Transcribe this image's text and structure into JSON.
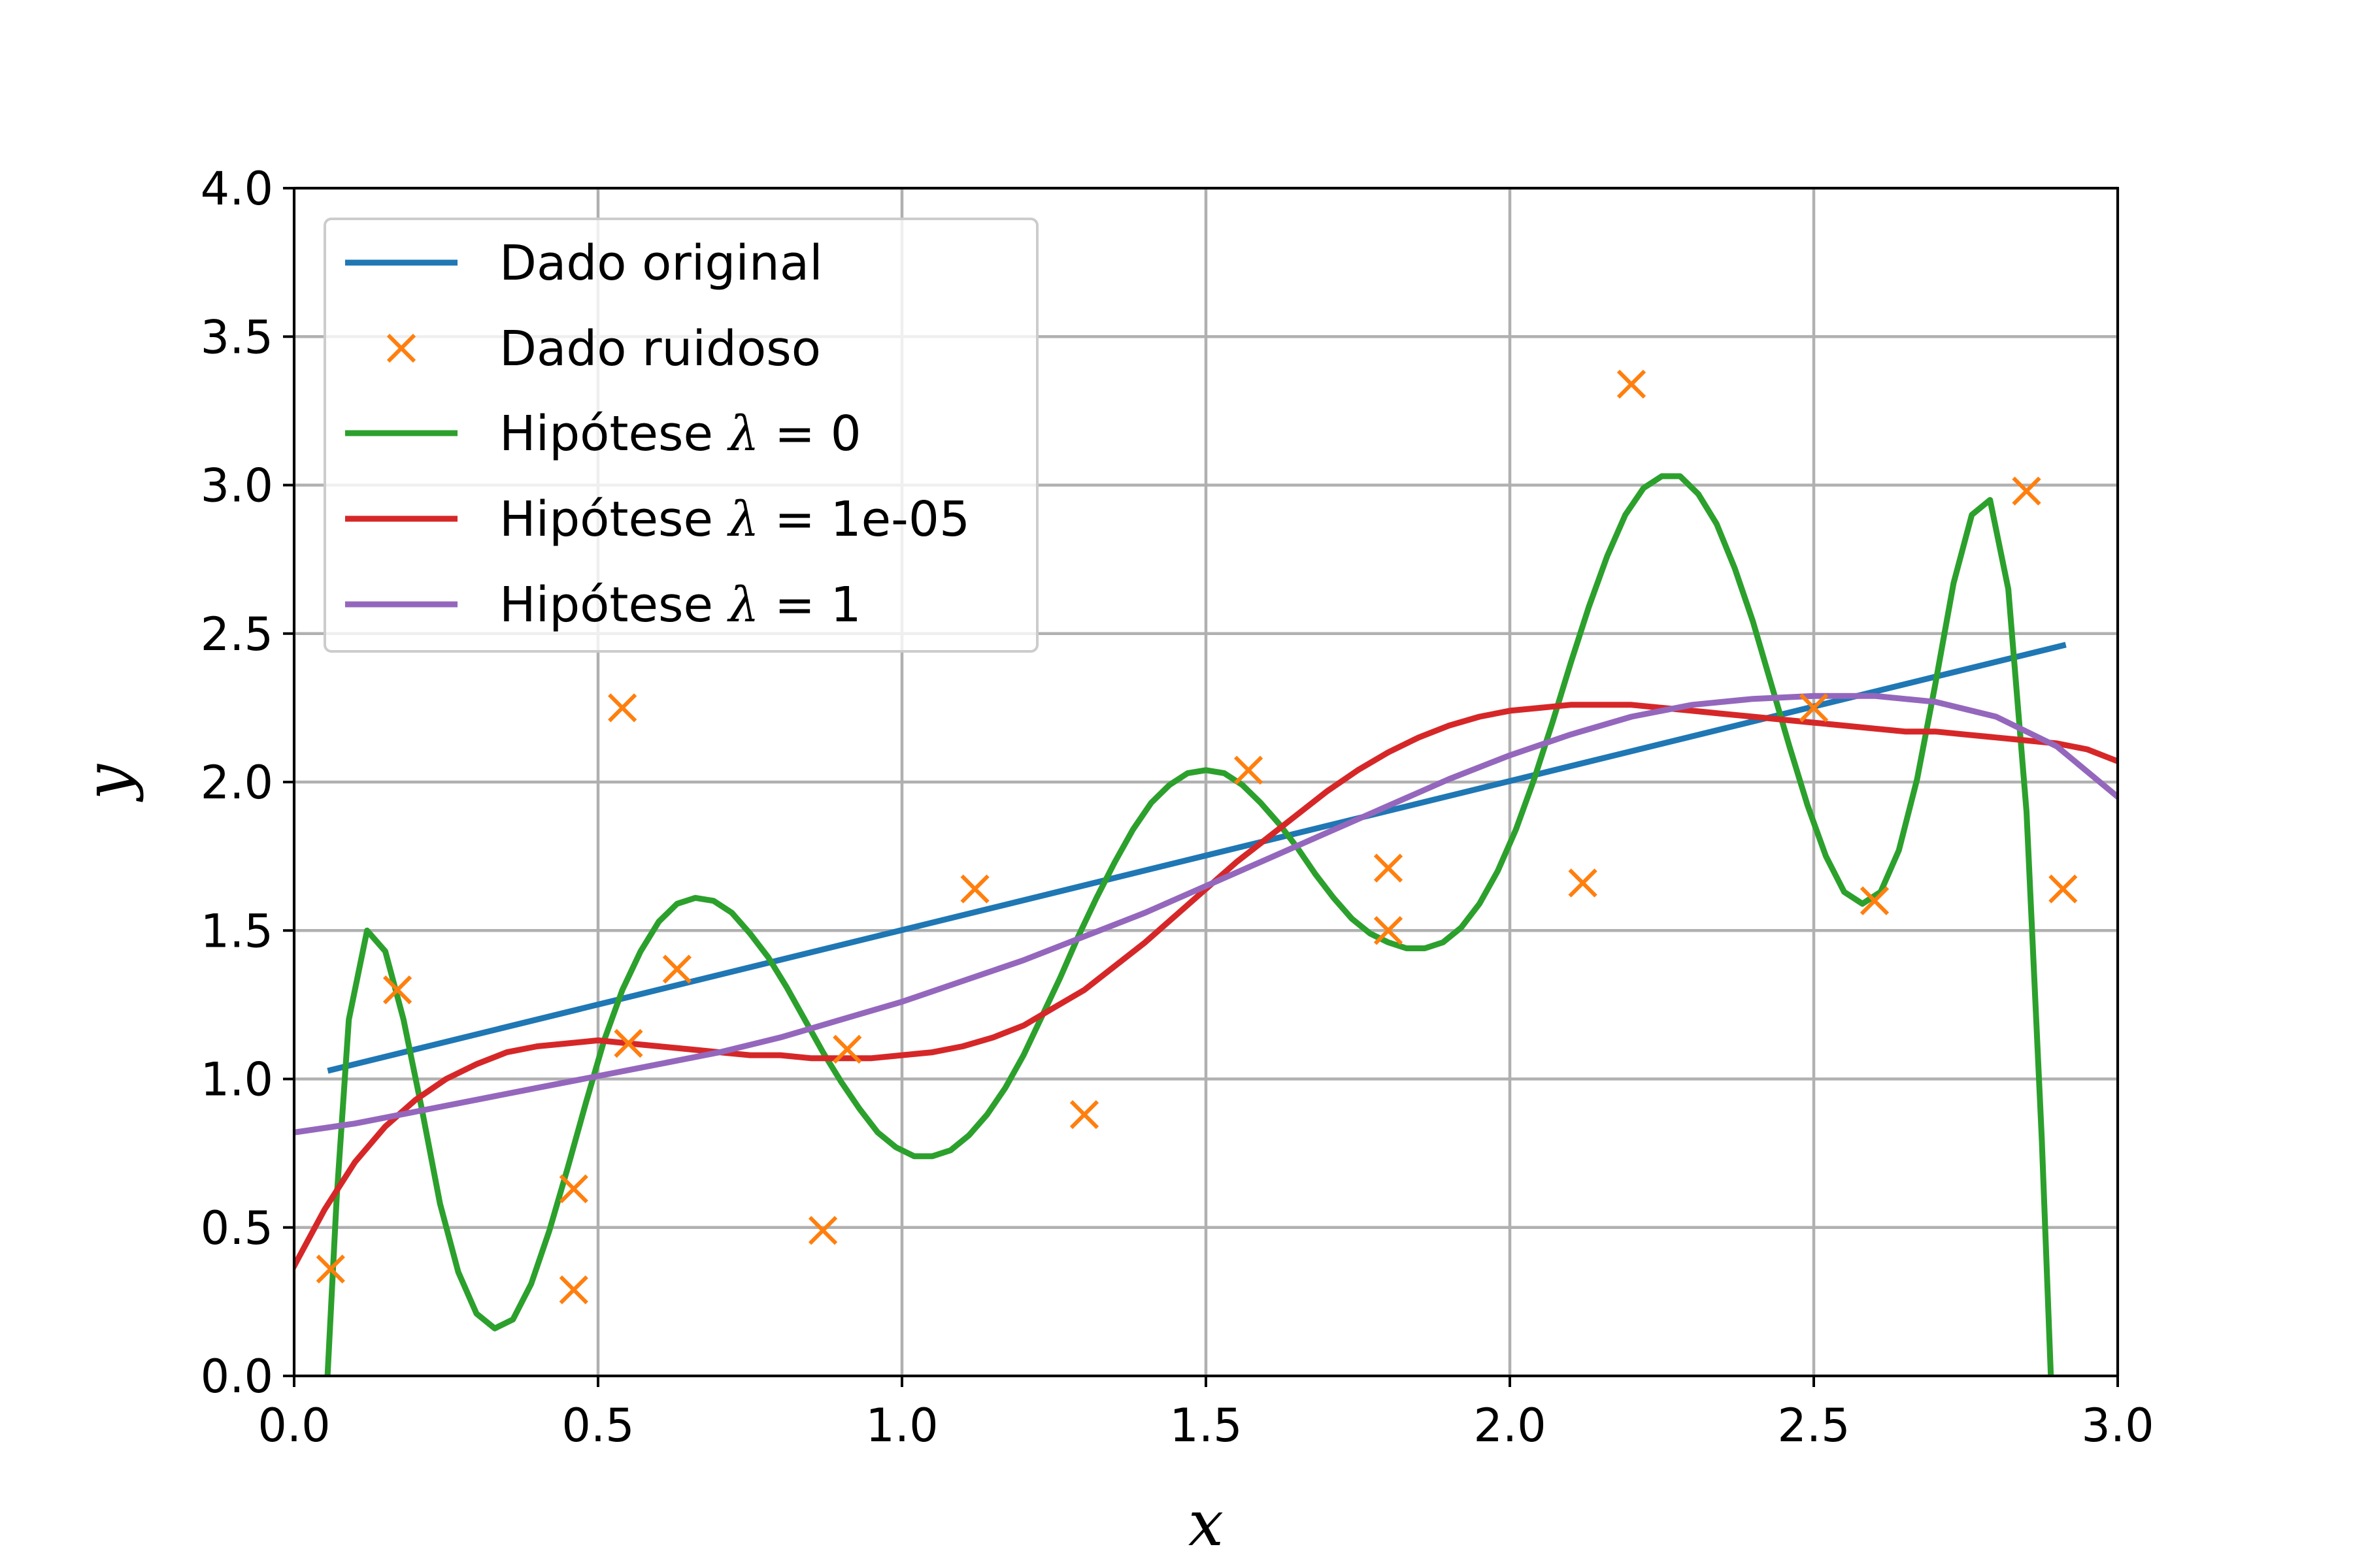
{
  "chart_data": {
    "type": "line",
    "title": "",
    "xlabel": "x",
    "ylabel": "y",
    "xlim": [
      0.0,
      3.0
    ],
    "ylim": [
      0.0,
      4.0
    ],
    "xticks": [
      "0.0",
      "0.5",
      "1.0",
      "1.5",
      "2.0",
      "2.5",
      "3.0"
    ],
    "yticks": [
      "0.0",
      "0.5",
      "1.0",
      "1.5",
      "2.0",
      "2.5",
      "3.0",
      "3.5",
      "4.0"
    ],
    "grid": true,
    "legend_position": "top-left",
    "series": [
      {
        "name": "Dado original",
        "kind": "line",
        "color": "#1f77b4",
        "points": [
          [
            0.06,
            1.03
          ],
          [
            2.91,
            2.46
          ]
        ]
      },
      {
        "name": "Dado ruidoso",
        "kind": "scatter",
        "marker": "x",
        "color": "#ff7f0e",
        "points": [
          [
            0.06,
            0.36
          ],
          [
            0.17,
            1.3
          ],
          [
            0.46,
            0.63
          ],
          [
            0.46,
            0.29
          ],
          [
            0.54,
            2.25
          ],
          [
            0.55,
            1.12
          ],
          [
            0.63,
            1.37
          ],
          [
            0.87,
            0.49
          ],
          [
            0.91,
            1.1
          ],
          [
            1.12,
            1.64
          ],
          [
            1.3,
            0.88
          ],
          [
            1.57,
            2.04
          ],
          [
            1.8,
            1.5
          ],
          [
            1.8,
            1.71
          ],
          [
            2.12,
            1.66
          ],
          [
            2.2,
            3.34
          ],
          [
            2.5,
            2.25
          ],
          [
            2.6,
            1.6
          ],
          [
            2.85,
            2.98
          ],
          [
            2.91,
            1.64
          ]
        ]
      },
      {
        "name": "Hipótese λ = 0",
        "legend_prefix": "Hipótese ",
        "legend_symbol": "λ",
        "legend_suffix": " = 0",
        "kind": "line",
        "color": "#2ca02c",
        "points": [
          [
            0.055,
            0.0
          ],
          [
            0.07,
            0.6
          ],
          [
            0.09,
            1.2
          ],
          [
            0.12,
            1.5
          ],
          [
            0.15,
            1.43
          ],
          [
            0.18,
            1.2
          ],
          [
            0.21,
            0.9
          ],
          [
            0.24,
            0.58
          ],
          [
            0.27,
            0.35
          ],
          [
            0.3,
            0.21
          ],
          [
            0.33,
            0.16
          ],
          [
            0.36,
            0.19
          ],
          [
            0.39,
            0.31
          ],
          [
            0.42,
            0.49
          ],
          [
            0.45,
            0.7
          ],
          [
            0.48,
            0.92
          ],
          [
            0.51,
            1.13
          ],
          [
            0.54,
            1.3
          ],
          [
            0.57,
            1.43
          ],
          [
            0.6,
            1.53
          ],
          [
            0.63,
            1.59
          ],
          [
            0.66,
            1.61
          ],
          [
            0.69,
            1.6
          ],
          [
            0.72,
            1.56
          ],
          [
            0.75,
            1.49
          ],
          [
            0.78,
            1.41
          ],
          [
            0.81,
            1.31
          ],
          [
            0.84,
            1.2
          ],
          [
            0.87,
            1.09
          ],
          [
            0.9,
            0.99
          ],
          [
            0.93,
            0.9
          ],
          [
            0.96,
            0.82
          ],
          [
            0.99,
            0.77
          ],
          [
            1.02,
            0.74
          ],
          [
            1.05,
            0.74
          ],
          [
            1.08,
            0.76
          ],
          [
            1.11,
            0.81
          ],
          [
            1.14,
            0.88
          ],
          [
            1.17,
            0.97
          ],
          [
            1.2,
            1.08
          ],
          [
            1.23,
            1.21
          ],
          [
            1.26,
            1.34
          ],
          [
            1.29,
            1.48
          ],
          [
            1.32,
            1.61
          ],
          [
            1.35,
            1.73
          ],
          [
            1.38,
            1.84
          ],
          [
            1.41,
            1.93
          ],
          [
            1.44,
            1.99
          ],
          [
            1.47,
            2.03
          ],
          [
            1.5,
            2.04
          ],
          [
            1.53,
            2.03
          ],
          [
            1.56,
            1.99
          ],
          [
            1.59,
            1.93
          ],
          [
            1.62,
            1.86
          ],
          [
            1.65,
            1.78
          ],
          [
            1.68,
            1.69
          ],
          [
            1.71,
            1.61
          ],
          [
            1.74,
            1.54
          ],
          [
            1.77,
            1.49
          ],
          [
            1.8,
            1.46
          ],
          [
            1.83,
            1.44
          ],
          [
            1.86,
            1.44
          ],
          [
            1.89,
            1.46
          ],
          [
            1.92,
            1.51
          ],
          [
            1.95,
            1.59
          ],
          [
            1.98,
            1.7
          ],
          [
            2.01,
            1.84
          ],
          [
            2.04,
            2.01
          ],
          [
            2.07,
            2.2
          ],
          [
            2.1,
            2.4
          ],
          [
            2.13,
            2.59
          ],
          [
            2.16,
            2.76
          ],
          [
            2.19,
            2.9
          ],
          [
            2.22,
            2.99
          ],
          [
            2.25,
            3.03
          ],
          [
            2.28,
            3.03
          ],
          [
            2.31,
            2.97
          ],
          [
            2.34,
            2.87
          ],
          [
            2.37,
            2.72
          ],
          [
            2.4,
            2.54
          ],
          [
            2.43,
            2.33
          ],
          [
            2.46,
            2.12
          ],
          [
            2.49,
            1.92
          ],
          [
            2.52,
            1.75
          ],
          [
            2.55,
            1.63
          ],
          [
            2.58,
            1.59
          ],
          [
            2.61,
            1.63
          ],
          [
            2.64,
            1.77
          ],
          [
            2.67,
            2.01
          ],
          [
            2.7,
            2.33
          ],
          [
            2.73,
            2.67
          ],
          [
            2.76,
            2.9
          ],
          [
            2.79,
            2.95
          ],
          [
            2.82,
            2.65
          ],
          [
            2.85,
            1.9
          ],
          [
            2.875,
            0.8
          ],
          [
            2.89,
            0.0
          ]
        ]
      },
      {
        "name": "Hipótese λ = 1e-05",
        "legend_prefix": "Hipótese ",
        "legend_symbol": "λ",
        "legend_suffix": " = 1e-05",
        "kind": "line",
        "color": "#d62728",
        "points": [
          [
            0.0,
            0.37
          ],
          [
            0.05,
            0.56
          ],
          [
            0.1,
            0.72
          ],
          [
            0.15,
            0.84
          ],
          [
            0.2,
            0.93
          ],
          [
            0.25,
            1.0
          ],
          [
            0.3,
            1.05
          ],
          [
            0.35,
            1.09
          ],
          [
            0.4,
            1.11
          ],
          [
            0.45,
            1.12
          ],
          [
            0.5,
            1.13
          ],
          [
            0.55,
            1.12
          ],
          [
            0.6,
            1.11
          ],
          [
            0.65,
            1.1
          ],
          [
            0.7,
            1.09
          ],
          [
            0.75,
            1.08
          ],
          [
            0.8,
            1.08
          ],
          [
            0.85,
            1.07
          ],
          [
            0.9,
            1.07
          ],
          [
            0.95,
            1.07
          ],
          [
            1.0,
            1.08
          ],
          [
            1.05,
            1.09
          ],
          [
            1.1,
            1.11
          ],
          [
            1.15,
            1.14
          ],
          [
            1.2,
            1.18
          ],
          [
            1.25,
            1.24
          ],
          [
            1.3,
            1.3
          ],
          [
            1.35,
            1.38
          ],
          [
            1.4,
            1.46
          ],
          [
            1.45,
            1.55
          ],
          [
            1.5,
            1.64
          ],
          [
            1.55,
            1.73
          ],
          [
            1.6,
            1.81
          ],
          [
            1.65,
            1.89
          ],
          [
            1.7,
            1.97
          ],
          [
            1.75,
            2.04
          ],
          [
            1.8,
            2.1
          ],
          [
            1.85,
            2.15
          ],
          [
            1.9,
            2.19
          ],
          [
            1.95,
            2.22
          ],
          [
            2.0,
            2.24
          ],
          [
            2.05,
            2.25
          ],
          [
            2.1,
            2.26
          ],
          [
            2.15,
            2.26
          ],
          [
            2.2,
            2.26
          ],
          [
            2.25,
            2.25
          ],
          [
            2.3,
            2.24
          ],
          [
            2.35,
            2.23
          ],
          [
            2.4,
            2.22
          ],
          [
            2.45,
            2.21
          ],
          [
            2.5,
            2.2
          ],
          [
            2.55,
            2.19
          ],
          [
            2.6,
            2.18
          ],
          [
            2.65,
            2.17
          ],
          [
            2.7,
            2.17
          ],
          [
            2.75,
            2.16
          ],
          [
            2.8,
            2.15
          ],
          [
            2.85,
            2.14
          ],
          [
            2.9,
            2.13
          ],
          [
            2.95,
            2.11
          ],
          [
            3.0,
            2.07
          ]
        ]
      },
      {
        "name": "Hipótese λ = 1",
        "legend_prefix": "Hipótese ",
        "legend_symbol": "λ",
        "legend_suffix": " = 1",
        "kind": "line",
        "color": "#9467bd",
        "points": [
          [
            0.0,
            0.82
          ],
          [
            0.1,
            0.85
          ],
          [
            0.2,
            0.89
          ],
          [
            0.3,
            0.93
          ],
          [
            0.4,
            0.97
          ],
          [
            0.5,
            1.01
          ],
          [
            0.6,
            1.05
          ],
          [
            0.7,
            1.09
          ],
          [
            0.8,
            1.14
          ],
          [
            0.9,
            1.2
          ],
          [
            1.0,
            1.26
          ],
          [
            1.1,
            1.33
          ],
          [
            1.2,
            1.4
          ],
          [
            1.3,
            1.48
          ],
          [
            1.4,
            1.56
          ],
          [
            1.5,
            1.65
          ],
          [
            1.6,
            1.74
          ],
          [
            1.7,
            1.83
          ],
          [
            1.8,
            1.92
          ],
          [
            1.9,
            2.01
          ],
          [
            2.0,
            2.09
          ],
          [
            2.1,
            2.16
          ],
          [
            2.2,
            2.22
          ],
          [
            2.3,
            2.26
          ],
          [
            2.4,
            2.28
          ],
          [
            2.5,
            2.29
          ],
          [
            2.6,
            2.29
          ],
          [
            2.7,
            2.27
          ],
          [
            2.8,
            2.22
          ],
          [
            2.9,
            2.12
          ],
          [
            3.0,
            1.95
          ]
        ]
      }
    ]
  }
}
